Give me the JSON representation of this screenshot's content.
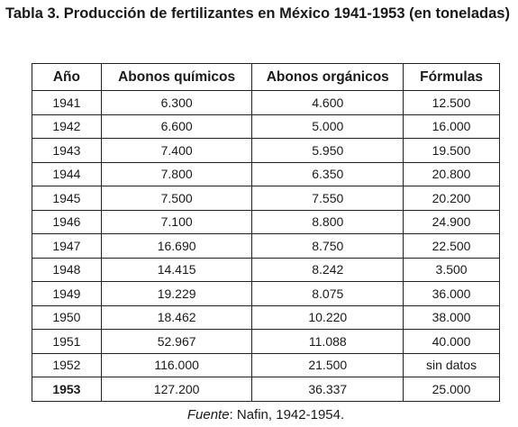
{
  "title": "Tabla 3. Producción de fertilizantes en México 1941-1953 (en toneladas)",
  "table": {
    "header": [
      "Año",
      "Abonos químicos",
      "Abonos orgánicos",
      "Fórmulas"
    ],
    "rows": [
      [
        "1941",
        "6.300",
        "4.600",
        "12.500"
      ],
      [
        "1942",
        "6.600",
        "5.000",
        "16.000"
      ],
      [
        "1943",
        "7.400",
        "5.950",
        "19.500"
      ],
      [
        "1944",
        "7.800",
        "6.350",
        "20.800"
      ],
      [
        "1945",
        "7.500",
        "7.550",
        "20.200"
      ],
      [
        "1946",
        "7.100",
        "8.800",
        "24.900"
      ],
      [
        "1947",
        "16.690",
        "8.750",
        "22.500"
      ],
      [
        "1948",
        "14.415",
        "8.242",
        "3.500"
      ],
      [
        "1949",
        "19.229",
        "8.075",
        "36.000"
      ],
      [
        "1950",
        "18.462",
        "10.220",
        "38.000"
      ],
      [
        "1951",
        "52.967",
        "11.088",
        "40.000"
      ],
      [
        "1952",
        "116.000",
        "21.500",
        "sin datos"
      ],
      [
        "1953",
        "127.200",
        "36.337",
        "25.000"
      ]
    ]
  },
  "source": {
    "label": "Fuente",
    "text": ": Nafin, 1942-1954."
  }
}
